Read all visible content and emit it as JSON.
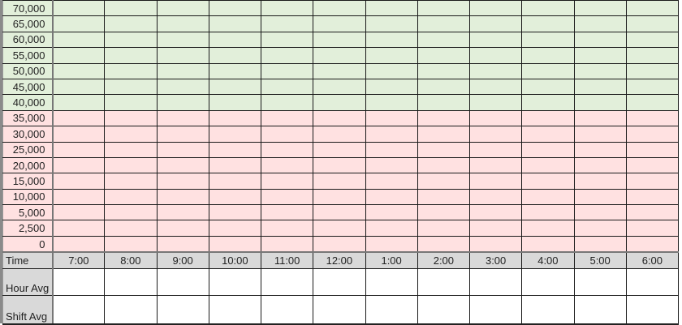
{
  "colors": {
    "above_threshold": "#e2efda",
    "below_threshold": "#ffe1e1",
    "header": "#d9d9d9"
  },
  "y_values": [
    {
      "label": "70,000",
      "zone": "green"
    },
    {
      "label": "65,000",
      "zone": "green"
    },
    {
      "label": "60,000",
      "zone": "green"
    },
    {
      "label": "55,000",
      "zone": "green"
    },
    {
      "label": "50,000",
      "zone": "green"
    },
    {
      "label": "45,000",
      "zone": "green"
    },
    {
      "label": "40,000",
      "zone": "green"
    },
    {
      "label": "35,000",
      "zone": "pink"
    },
    {
      "label": "30,000",
      "zone": "pink"
    },
    {
      "label": "25,000",
      "zone": "pink"
    },
    {
      "label": "20,000",
      "zone": "pink"
    },
    {
      "label": "15,000",
      "zone": "pink"
    },
    {
      "label": "10,000",
      "zone": "pink"
    },
    {
      "label": "5,000",
      "zone": "pink"
    },
    {
      "label": "2,500",
      "zone": "pink"
    },
    {
      "label": "0",
      "zone": "pink"
    }
  ],
  "time_row": {
    "label": "Time",
    "hours": [
      "7:00",
      "8:00",
      "9:00",
      "10:00",
      "11:00",
      "12:00",
      "1:00",
      "2:00",
      "3:00",
      "4:00",
      "5:00",
      "6:00"
    ]
  },
  "hour_avg": {
    "label": "Hour Avg"
  },
  "shift_avg": {
    "label": "Shift Avg"
  }
}
